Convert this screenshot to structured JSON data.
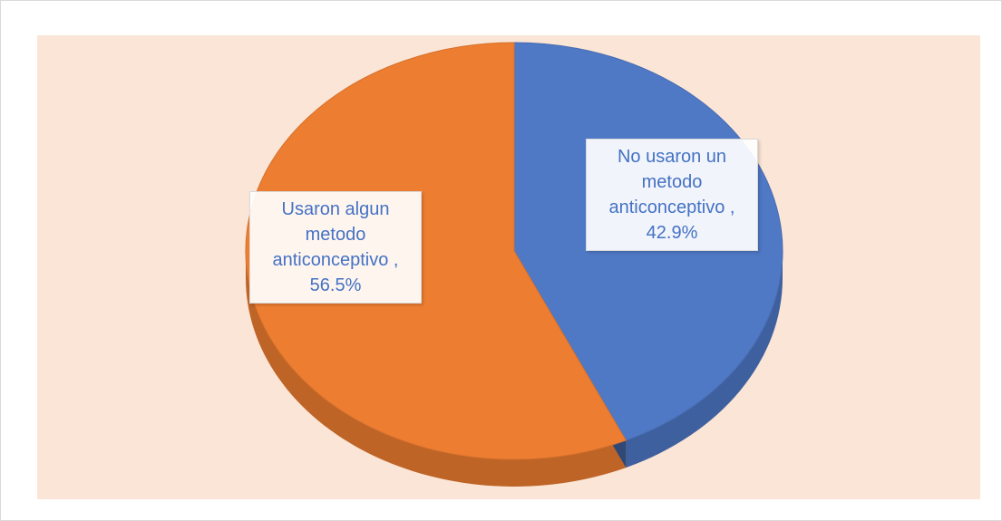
{
  "chart_data": {
    "type": "pie",
    "categories": [
      "Usaron algun metodo anticonceptivo ,",
      "No usaron un metodo anticonceptivo ,"
    ],
    "values": [
      56.5,
      42.9
    ],
    "value_labels": [
      "56.5%",
      "42.9%"
    ],
    "colors": [
      "#ed7d31",
      "#4f78c5"
    ]
  }
}
